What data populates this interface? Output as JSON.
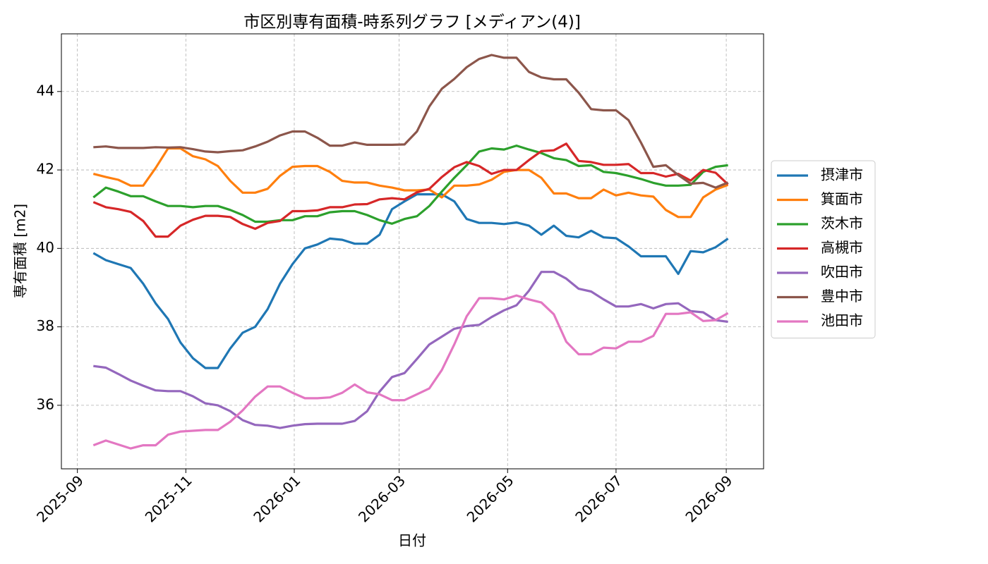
{
  "chart_data": {
    "type": "line",
    "title": "市区別専有面積-時系列グラフ [メディアン(4)]",
    "xlabel": "日付",
    "ylabel": "専有面積 [m2]",
    "x": [
      "2025-09-10",
      "2025-09-17",
      "2025-09-24",
      "2025-10-01",
      "2025-10-08",
      "2025-10-15",
      "2025-10-22",
      "2025-10-29",
      "2025-11-05",
      "2025-11-12",
      "2025-11-19",
      "2025-11-26",
      "2025-12-03",
      "2025-12-10",
      "2025-12-17",
      "2025-12-24",
      "2025-12-31",
      "2026-01-07",
      "2026-01-14",
      "2026-01-21",
      "2026-01-28",
      "2026-02-04",
      "2026-02-11",
      "2026-02-18",
      "2026-02-25",
      "2026-03-04",
      "2026-03-11",
      "2026-03-18",
      "2026-03-25",
      "2026-04-01",
      "2026-04-08",
      "2026-04-15",
      "2026-04-22",
      "2026-04-29",
      "2026-05-06",
      "2026-05-13",
      "2026-05-20",
      "2026-05-27",
      "2026-06-03",
      "2026-06-10",
      "2026-06-17",
      "2026-06-24",
      "2026-07-01",
      "2026-07-08",
      "2026-07-15",
      "2026-07-22",
      "2026-07-29",
      "2026-08-05",
      "2026-08-12",
      "2026-08-19",
      "2026-08-26",
      "2026-09-02"
    ],
    "series": [
      {
        "name": "摂津市",
        "color": "#1f77b4",
        "values": [
          39.88,
          39.7,
          39.6,
          39.5,
          39.1,
          38.6,
          38.2,
          37.6,
          37.2,
          36.95,
          36.95,
          37.45,
          37.85,
          38.0,
          38.45,
          39.1,
          39.6,
          40.0,
          40.1,
          40.25,
          40.22,
          40.12,
          40.12,
          40.35,
          41.0,
          41.2,
          41.38,
          41.38,
          41.38,
          41.2,
          40.75,
          40.65,
          40.65,
          40.62,
          40.66,
          40.58,
          40.35,
          40.58,
          40.32,
          40.28,
          40.45,
          40.28,
          40.26,
          40.05,
          39.8,
          39.8,
          39.8,
          39.35,
          39.93,
          39.9,
          40.03,
          40.25
        ]
      },
      {
        "name": "箕面市",
        "color": "#ff7f0e",
        "values": [
          41.9,
          41.82,
          41.75,
          41.6,
          41.6,
          42.05,
          42.55,
          42.55,
          42.35,
          42.27,
          42.1,
          41.72,
          41.42,
          41.42,
          41.52,
          41.85,
          42.08,
          42.1,
          42.1,
          41.95,
          41.72,
          41.68,
          41.68,
          41.6,
          41.55,
          41.48,
          41.48,
          41.5,
          41.3,
          41.6,
          41.6,
          41.63,
          41.75,
          41.95,
          42.0,
          42.0,
          41.8,
          41.4,
          41.4,
          41.28,
          41.28,
          41.5,
          41.35,
          41.42,
          41.35,
          41.32,
          40.98,
          40.8,
          40.8,
          41.3,
          41.5,
          41.62
        ]
      },
      {
        "name": "茨木市",
        "color": "#2ca02c",
        "values": [
          41.3,
          41.55,
          41.45,
          41.33,
          41.33,
          41.2,
          41.08,
          41.08,
          41.05,
          41.08,
          41.08,
          40.98,
          40.85,
          40.68,
          40.68,
          40.72,
          40.72,
          40.82,
          40.82,
          40.92,
          40.95,
          40.95,
          40.85,
          40.72,
          40.63,
          40.75,
          40.82,
          41.08,
          41.45,
          41.8,
          42.12,
          42.47,
          42.55,
          42.52,
          42.62,
          42.52,
          42.43,
          42.3,
          42.25,
          42.1,
          42.12,
          41.95,
          41.92,
          41.85,
          41.77,
          41.67,
          41.6,
          41.6,
          41.62,
          41.95,
          42.08,
          42.12
        ]
      },
      {
        "name": "高槻市",
        "color": "#d62728",
        "values": [
          41.18,
          41.05,
          41.0,
          40.93,
          40.7,
          40.3,
          40.3,
          40.58,
          40.73,
          40.83,
          40.83,
          40.8,
          40.62,
          40.5,
          40.65,
          40.7,
          40.95,
          40.95,
          40.97,
          41.05,
          41.05,
          41.12,
          41.13,
          41.25,
          41.28,
          41.25,
          41.43,
          41.52,
          41.82,
          42.07,
          42.2,
          42.1,
          41.9,
          42.0,
          42.0,
          42.25,
          42.48,
          42.5,
          42.67,
          42.23,
          42.2,
          42.13,
          42.13,
          42.15,
          41.92,
          41.92,
          41.83,
          41.9,
          41.73,
          42.0,
          41.93,
          41.63
        ]
      },
      {
        "name": "吹田市",
        "color": "#9467bd",
        "values": [
          37.0,
          36.96,
          36.8,
          36.63,
          36.5,
          36.38,
          36.36,
          36.36,
          36.23,
          36.05,
          36.0,
          35.85,
          35.62,
          35.5,
          35.48,
          35.42,
          35.48,
          35.52,
          35.53,
          35.53,
          35.53,
          35.6,
          35.85,
          36.35,
          36.72,
          36.82,
          37.18,
          37.55,
          37.75,
          37.95,
          38.02,
          38.05,
          38.25,
          38.42,
          38.55,
          38.92,
          39.4,
          39.4,
          39.23,
          38.97,
          38.9,
          38.7,
          38.52,
          38.52,
          38.58,
          38.47,
          38.58,
          38.6,
          38.4,
          38.37,
          38.17,
          38.13
        ]
      },
      {
        "name": "豊中市",
        "color": "#8c564b",
        "values": [
          42.58,
          42.6,
          42.56,
          42.56,
          42.56,
          42.58,
          42.57,
          42.58,
          42.53,
          42.47,
          42.45,
          42.48,
          42.5,
          42.6,
          42.72,
          42.88,
          42.98,
          42.98,
          42.82,
          42.62,
          42.62,
          42.7,
          42.64,
          42.64,
          42.64,
          42.65,
          42.98,
          43.62,
          44.07,
          44.32,
          44.62,
          44.83,
          44.93,
          44.86,
          44.86,
          44.5,
          44.36,
          44.31,
          44.31,
          43.97,
          43.55,
          43.52,
          43.52,
          43.27,
          42.7,
          42.08,
          42.12,
          41.87,
          41.65,
          41.67,
          41.55,
          41.68
        ]
      },
      {
        "name": "池田市",
        "color": "#e377c2",
        "values": [
          34.98,
          35.1,
          35.0,
          34.9,
          34.98,
          34.98,
          35.25,
          35.33,
          35.35,
          35.37,
          35.37,
          35.58,
          35.87,
          36.22,
          36.48,
          36.48,
          36.32,
          36.18,
          36.18,
          36.2,
          36.32,
          36.53,
          36.33,
          36.28,
          36.13,
          36.13,
          36.28,
          36.43,
          36.9,
          37.55,
          38.27,
          38.73,
          38.73,
          38.7,
          38.8,
          38.7,
          38.62,
          38.32,
          37.62,
          37.3,
          37.3,
          37.47,
          37.45,
          37.62,
          37.62,
          37.77,
          38.33,
          38.33,
          38.37,
          38.15,
          38.17,
          38.35
        ]
      }
    ],
    "xlim": [
      "2025-08-23",
      "2026-09-22"
    ],
    "xticks": [
      {
        "value": "2025-09-01",
        "label": "2025-09"
      },
      {
        "value": "2025-11-01",
        "label": "2025-11"
      },
      {
        "value": "2026-01-01",
        "label": "2026-01"
      },
      {
        "value": "2026-03-01",
        "label": "2026-03"
      },
      {
        "value": "2026-05-01",
        "label": "2026-05"
      },
      {
        "value": "2026-07-01",
        "label": "2026-07"
      },
      {
        "value": "2026-09-01",
        "label": "2026-09"
      }
    ],
    "ylim": [
      34.38,
      45.47
    ],
    "yticks": [
      36,
      38,
      40,
      42,
      44
    ],
    "grid": true,
    "legend": "right"
  }
}
